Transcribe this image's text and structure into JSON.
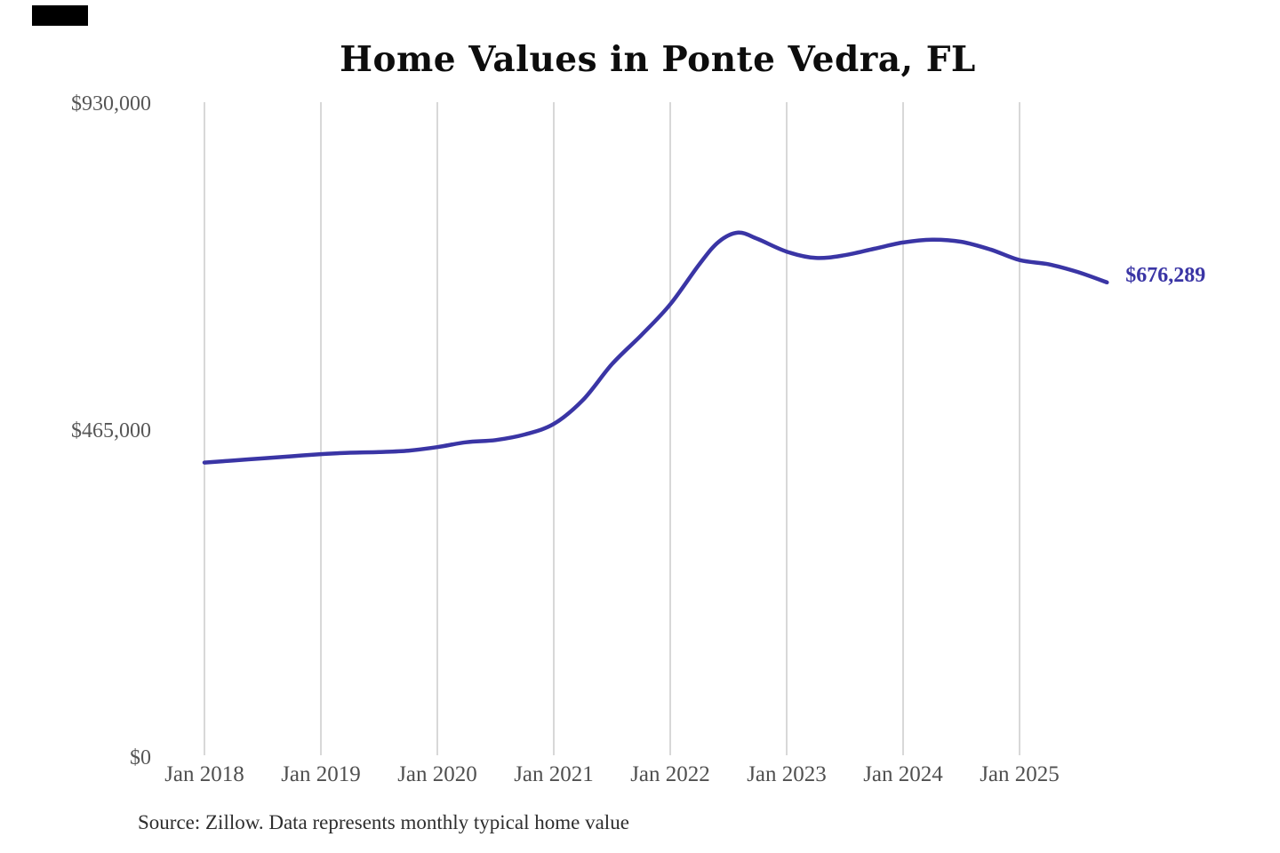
{
  "page": {
    "background": "#ffffff",
    "redaction_color": "#000000"
  },
  "chart_data": {
    "type": "line",
    "title": "Home Values in Ponte Vedra, FL",
    "xlabel": "",
    "ylabel": "",
    "ylim": [
      0,
      930000
    ],
    "grid": "vertical-only",
    "gridline_color": "#cccccc",
    "line_color": "#3a35a5",
    "label_color": "#3a35a5",
    "y_axis": {
      "ticks": [
        {
          "label": "$0",
          "value": 0
        },
        {
          "label": "$465,000",
          "value": 465000
        },
        {
          "label": "$930,000",
          "value": 930000
        }
      ]
    },
    "x_axis": {
      "ticks": [
        {
          "label": "Jan 2018",
          "month": "2018-01"
        },
        {
          "label": "Jan 2019",
          "month": "2019-01"
        },
        {
          "label": "Jan 2020",
          "month": "2020-01"
        },
        {
          "label": "Jan 2021",
          "month": "2021-01"
        },
        {
          "label": "Jan 2022",
          "month": "2022-01"
        },
        {
          "label": "Jan 2023",
          "month": "2023-01"
        },
        {
          "label": "Jan 2024",
          "month": "2024-01"
        },
        {
          "label": "Jan 2025",
          "month": "2025-01"
        }
      ]
    },
    "series": [
      {
        "name": "Monthly typical home value",
        "points": [
          [
            "2018-01",
            420000
          ],
          [
            "2018-04",
            423000
          ],
          [
            "2018-07",
            426000
          ],
          [
            "2018-10",
            429000
          ],
          [
            "2019-01",
            432000
          ],
          [
            "2019-04",
            434000
          ],
          [
            "2019-07",
            435000
          ],
          [
            "2019-10",
            437000
          ],
          [
            "2020-01",
            442000
          ],
          [
            "2020-04",
            449000
          ],
          [
            "2020-07",
            452000
          ],
          [
            "2020-10",
            460000
          ],
          [
            "2021-01",
            475000
          ],
          [
            "2021-04",
            509000
          ],
          [
            "2021-07",
            560000
          ],
          [
            "2021-10",
            601000
          ],
          [
            "2022-01",
            645000
          ],
          [
            "2022-04",
            702000
          ],
          [
            "2022-06",
            734000
          ],
          [
            "2022-08",
            747000
          ],
          [
            "2022-10",
            738000
          ],
          [
            "2023-01",
            720000
          ],
          [
            "2023-04",
            711000
          ],
          [
            "2023-07",
            715000
          ],
          [
            "2023-10",
            724000
          ],
          [
            "2024-01",
            733000
          ],
          [
            "2024-04",
            737000
          ],
          [
            "2024-07",
            734000
          ],
          [
            "2024-10",
            723000
          ],
          [
            "2025-01",
            708000
          ],
          [
            "2025-04",
            702000
          ],
          [
            "2025-07",
            691000
          ],
          [
            "2025-10",
            676289
          ]
        ]
      }
    ],
    "end_label": "$676,289",
    "end_value": 676289,
    "source_note": "Source: Zillow. Data represents monthly typical home value"
  }
}
